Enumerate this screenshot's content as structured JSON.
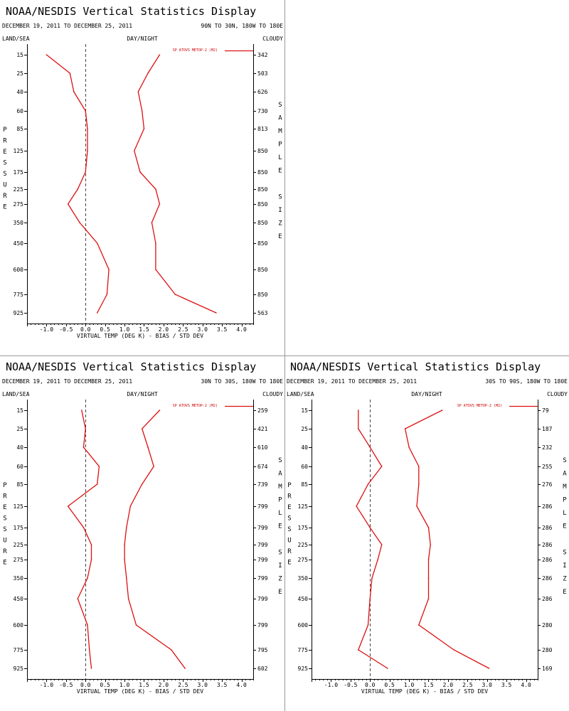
{
  "colors": {
    "series": "#dd1111",
    "axis": "#000000",
    "zero_line": "#444444",
    "divider": "#999999"
  },
  "chart_data": [
    {
      "type": "line",
      "title": "NOAA/NESDIS Vertical Statistics Display",
      "date_range": "DECEMBER 19, 2011 TO DECEMBER 25, 2011",
      "region": "90N TO 30N, 180W TO 180E",
      "land_sea": "LAND/SEA",
      "day_night": "DAY/NIGHT",
      "cloud": "CLOUDY",
      "xlabel": "VIRTUAL TEMP (DEG K) - BIAS / STD DEV",
      "ylabel": "PRESSURE",
      "right_label": "SAMPLE SIZE",
      "legend": "SP ATOVS METOP-2 (M2)",
      "xlim": [
        -1.5,
        4.3
      ],
      "x_ticks": [
        "-1.0",
        "-0.5",
        "0.0",
        "0.5",
        "1.0",
        "1.5",
        "2.0",
        "2.5",
        "3.0",
        "3.5",
        "4.0"
      ],
      "pressure_levels": [
        "15",
        "25",
        "40",
        "60",
        "85",
        "125",
        "175",
        "225",
        "275",
        "350",
        "450",
        "600",
        "775",
        "925"
      ],
      "sample_size": [
        "342",
        "503",
        "626",
        "730",
        "813",
        "850",
        "850",
        "850",
        "850",
        "850",
        "850",
        "850",
        "850",
        "563"
      ],
      "series": [
        {
          "name": "bias",
          "values": [
            -1.0,
            -0.4,
            -0.3,
            0.0,
            0.05,
            0.05,
            0.0,
            -0.2,
            -0.45,
            -0.15,
            0.3,
            0.6,
            0.55,
            0.3
          ]
        },
        {
          "name": "std_dev",
          "values": [
            1.9,
            1.6,
            1.35,
            1.45,
            1.5,
            1.25,
            1.4,
            1.8,
            1.9,
            1.7,
            1.8,
            1.8,
            2.3,
            3.35
          ]
        }
      ]
    },
    {
      "type": "line",
      "title": "NOAA/NESDIS Vertical Statistics Display",
      "date_range": "DECEMBER 19, 2011 TO DECEMBER 25, 2011",
      "region": "30N TO 30S, 180W TO 180E",
      "land_sea": "LAND/SEA",
      "day_night": "DAY/NIGHT",
      "cloud": "CLOUDY",
      "xlabel": "VIRTUAL TEMP (DEG K) - BIAS / STD DEV",
      "ylabel": "PRESSURE",
      "right_label": "SAMPLE SIZE",
      "legend": "SP ATOVS METOP-2 (M2)",
      "xlim": [
        -1.5,
        4.3
      ],
      "x_ticks": [
        "-1.0",
        "-0.5",
        "0.0",
        "0.5",
        "1.0",
        "1.5",
        "2.0",
        "2.5",
        "3.0",
        "3.5",
        "4.0"
      ],
      "pressure_levels": [
        "15",
        "25",
        "40",
        "60",
        "85",
        "125",
        "175",
        "225",
        "275",
        "350",
        "450",
        "600",
        "775",
        "925"
      ],
      "sample_size": [
        "259",
        "421",
        "610",
        "674",
        "739",
        "799",
        "799",
        "799",
        "799",
        "799",
        "799",
        "799",
        "795",
        "602"
      ],
      "series": [
        {
          "name": "bias",
          "values": [
            -0.1,
            0.0,
            -0.05,
            0.35,
            0.3,
            -0.45,
            -0.05,
            0.15,
            0.15,
            0.05,
            -0.2,
            0.05,
            0.1,
            0.15
          ]
        },
        {
          "name": "std_dev",
          "values": [
            1.9,
            1.45,
            1.6,
            1.75,
            1.45,
            1.15,
            1.05,
            1.0,
            1.0,
            1.05,
            1.1,
            1.3,
            2.2,
            2.55
          ]
        }
      ]
    },
    {
      "type": "line",
      "title": "NOAA/NESDIS Vertical Statistics Display",
      "date_range": "DECEMBER 19, 2011 TO DECEMBER 25, 2011",
      "region": "30S TO 90S, 180W TO 180E",
      "land_sea": "LAND/SEA",
      "day_night": "DAY/NIGHT",
      "cloud": "CLOUDY",
      "xlabel": "VIRTUAL TEMP (DEG K) - BIAS / STD DEV",
      "ylabel": "PRESSURE",
      "right_label": "SAMPLE SIZE",
      "legend": "SP ATOVS METOP-2 (M2)",
      "xlim": [
        -1.5,
        4.3
      ],
      "x_ticks": [
        "-1.0",
        "-0.5",
        "0.0",
        "0.5",
        "1.0",
        "1.5",
        "2.0",
        "2.5",
        "3.0",
        "3.5",
        "4.0"
      ],
      "pressure_levels": [
        "15",
        "25",
        "40",
        "60",
        "85",
        "125",
        "175",
        "225",
        "275",
        "350",
        "450",
        "600",
        "775",
        "925"
      ],
      "sample_size": [
        "79",
        "187",
        "232",
        "255",
        "276",
        "286",
        "286",
        "286",
        "286",
        "286",
        "286",
        "280",
        "280",
        "169"
      ],
      "series": [
        {
          "name": "bias",
          "values": [
            -0.3,
            -0.3,
            0.0,
            0.3,
            -0.05,
            -0.35,
            0.0,
            0.3,
            0.2,
            0.05,
            0.0,
            -0.05,
            -0.3,
            0.45
          ]
        },
        {
          "name": "std_dev",
          "values": [
            1.85,
            0.9,
            1.0,
            1.25,
            1.25,
            1.2,
            1.5,
            1.55,
            1.5,
            1.5,
            1.5,
            1.25,
            2.15,
            3.05
          ]
        }
      ]
    }
  ]
}
